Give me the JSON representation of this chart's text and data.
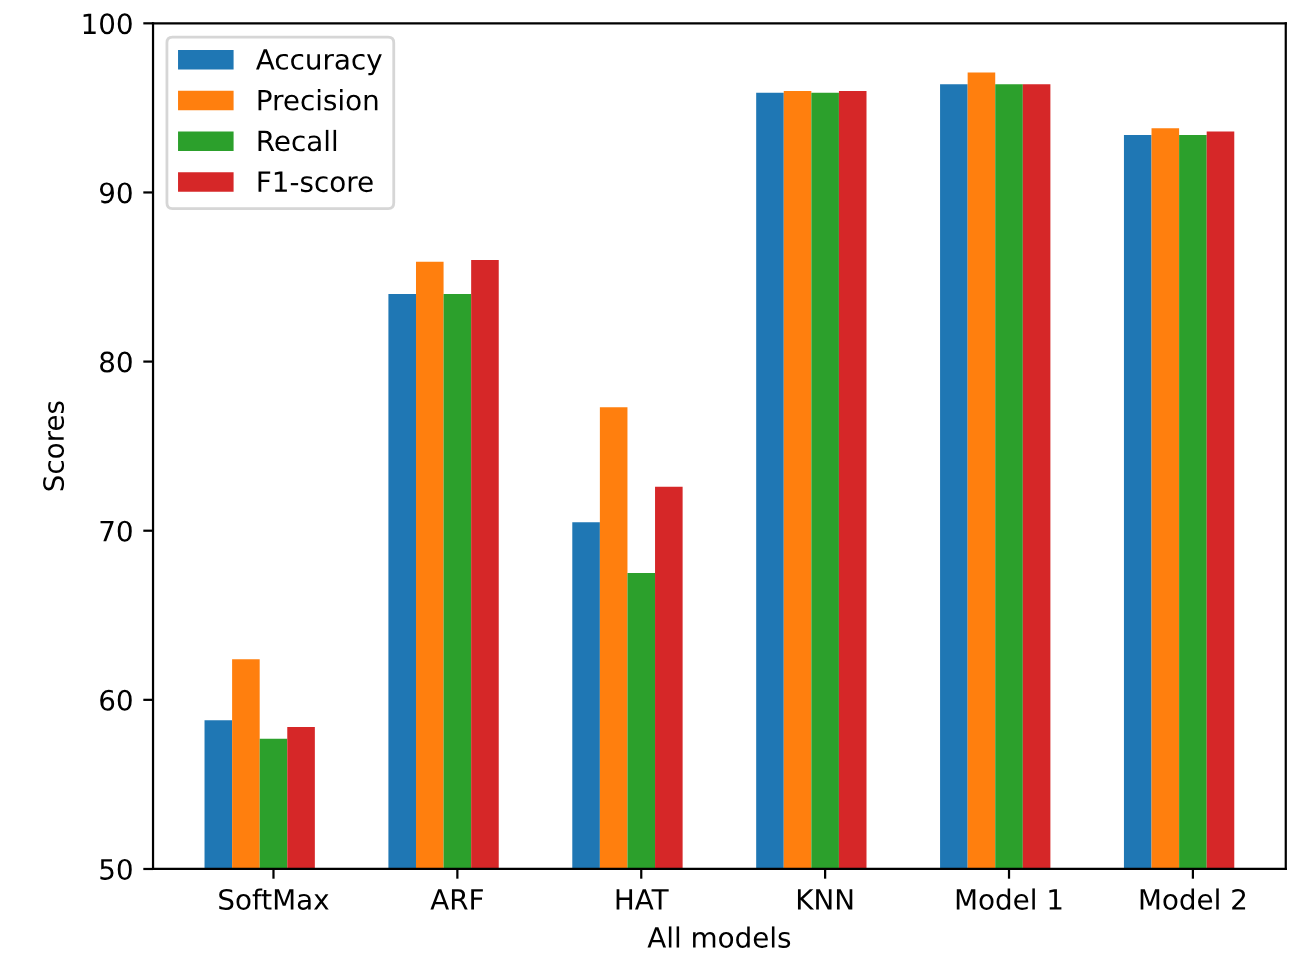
{
  "chart_data": {
    "type": "bar",
    "xlabel": "All models",
    "ylabel": "Scores",
    "categories": [
      "SoftMax",
      "ARF",
      "HAT",
      "KNN",
      "Model 1",
      "Model 2"
    ],
    "series": [
      {
        "name": "Accuracy",
        "color": "#1f77b4",
        "values": [
          58.8,
          84.0,
          70.5,
          95.9,
          96.4,
          93.4
        ]
      },
      {
        "name": "Precision",
        "color": "#ff7f0e",
        "values": [
          62.4,
          85.9,
          77.3,
          96.0,
          97.1,
          93.8
        ]
      },
      {
        "name": "Recall",
        "color": "#2ca02c",
        "values": [
          57.7,
          84.0,
          67.5,
          95.9,
          96.4,
          93.4
        ]
      },
      {
        "name": "F1-score",
        "color": "#d62728",
        "values": [
          58.4,
          86.0,
          72.6,
          96.0,
          96.4,
          93.6
        ]
      }
    ],
    "ylim": [
      50,
      100
    ],
    "yticks": [
      50,
      60,
      70,
      80,
      90,
      100
    ],
    "grid": false,
    "legend": "top left"
  }
}
